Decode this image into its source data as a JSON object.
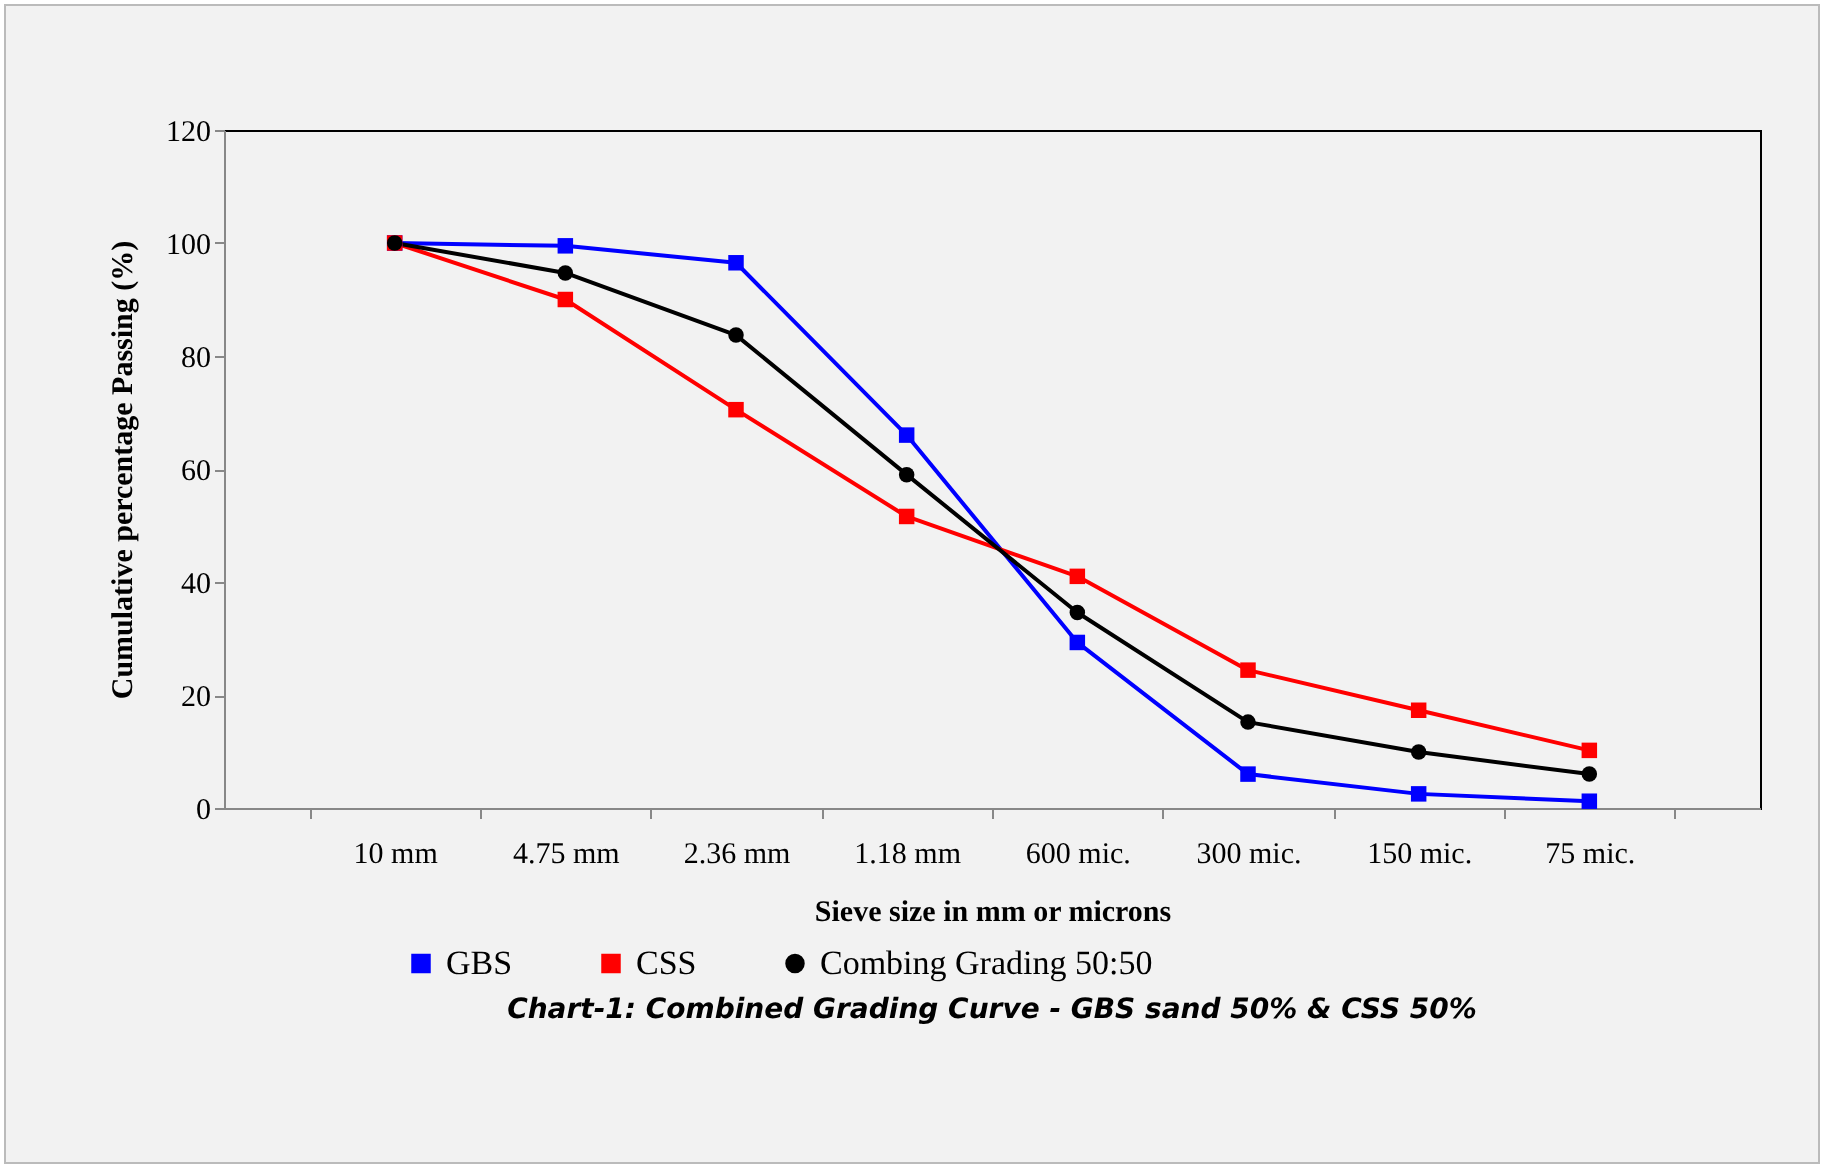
{
  "chart_data": {
    "type": "line",
    "title": "Chart-1: Combined Grading Curve - GBS sand 50% & CSS 50%",
    "xlabel": "Sieve size in mm or microns",
    "ylabel": "Cumulative percentage Passing (%)",
    "categories": [
      "10 mm",
      "4.75 mm",
      "2.36 mm",
      "1.18 mm",
      "600 mic.",
      "300 mic.",
      "150 mic.",
      "75 mic."
    ],
    "series": [
      {
        "name": "GBS",
        "color": "#0000ff",
        "marker": "square",
        "values": [
          100,
          99.5,
          96.5,
          66,
          29.3,
          6,
          2.5,
          1.2
        ]
      },
      {
        "name": "CSS",
        "color": "#ff0000",
        "marker": "square",
        "values": [
          100,
          90,
          70.5,
          51.6,
          41,
          24.4,
          17.3,
          10.2
        ]
      },
      {
        "name": "Combing Grading 50:50",
        "color": "#000000",
        "marker": "circle",
        "values": [
          100,
          94.7,
          83.7,
          59,
          34.6,
          15.2,
          9.9,
          6
        ]
      }
    ],
    "ylim": [
      0,
      120
    ],
    "yticks": [
      0,
      20,
      40,
      60,
      80,
      100,
      120
    ],
    "grid": false,
    "legend": "bottom",
    "line_style": "solid"
  }
}
